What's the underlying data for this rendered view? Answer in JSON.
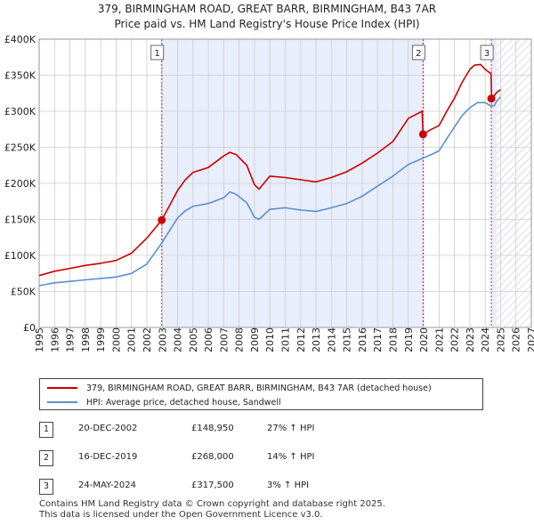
{
  "title_line1": "379, BIRMINGHAM ROAD, GREAT BARR, BIRMINGHAM, B43 7AR",
  "title_line2": "Price paid vs. HM Land Registry's House Price Index (HPI)",
  "chart_data": {
    "type": "line",
    "xlim": [
      1995,
      2027
    ],
    "ylim": [
      0,
      400000
    ],
    "x_ticks": [
      "1995",
      "1996",
      "1997",
      "1998",
      "1999",
      "2000",
      "2001",
      "2002",
      "2003",
      "2004",
      "2005",
      "2006",
      "2007",
      "2008",
      "2009",
      "2010",
      "2011",
      "2012",
      "2013",
      "2014",
      "2015",
      "2016",
      "2017",
      "2018",
      "2019",
      "2020",
      "2021",
      "2022",
      "2023",
      "2024",
      "2025",
      "2026",
      "2027"
    ],
    "y_ticks": [
      {
        "value": 0,
        "label": "£0"
      },
      {
        "value": 50000,
        "label": "£50K"
      },
      {
        "value": 100000,
        "label": "£100K"
      },
      {
        "value": 150000,
        "label": "£150K"
      },
      {
        "value": 200000,
        "label": "£200K"
      },
      {
        "value": 250000,
        "label": "£250K"
      },
      {
        "value": 300000,
        "label": "£300K"
      },
      {
        "value": 350000,
        "label": "£350K"
      },
      {
        "value": 400000,
        "label": "£400K"
      }
    ],
    "shaded_ranges": [
      [
        2002.97,
        2019.96
      ],
      [
        2024.4,
        2024.75
      ]
    ],
    "forecast_start": 2024.75,
    "series": [
      {
        "name": "379, BIRMINGHAM ROAD, GREAT BARR, BIRMINGHAM, B43 7AR (detached house)",
        "color": "#cc0000",
        "x": [
          1995.0,
          1996.0,
          1997.0,
          1998.0,
          1999.0,
          2000.0,
          2001.0,
          2002.0,
          2002.97,
          2003.5,
          2004.0,
          2004.5,
          2005.0,
          2006.0,
          2007.0,
          2007.4,
          2007.8,
          2008.5,
          2009.0,
          2009.3,
          2010.0,
          2011.0,
          2012.0,
          2013.0,
          2014.0,
          2015.0,
          2016.0,
          2017.0,
          2018.0,
          2019.0,
          2019.9,
          2019.96,
          2020.5,
          2021.0,
          2021.5,
          2022.0,
          2022.5,
          2023.0,
          2023.3,
          2023.7,
          2024.0,
          2024.38,
          2024.42,
          2024.6,
          2024.75,
          2025.0
        ],
        "y": [
          72000,
          78000,
          82000,
          86000,
          89000,
          93000,
          103000,
          124000,
          148950,
          170000,
          190000,
          205000,
          215000,
          222000,
          238000,
          243000,
          240000,
          225000,
          198000,
          192000,
          210000,
          208000,
          205000,
          202000,
          208000,
          216000,
          228000,
          242000,
          258000,
          290000,
          300000,
          268000,
          275000,
          280000,
          300000,
          318000,
          340000,
          358000,
          364000,
          365000,
          358000,
          352000,
          317500,
          322000,
          326000,
          330000
        ]
      },
      {
        "name": "HPI: Average price, detached house, Sandwell",
        "color": "#5b8fd0",
        "x": [
          1995.0,
          1996.0,
          1997.0,
          1998.0,
          1999.0,
          2000.0,
          2001.0,
          2002.0,
          2002.97,
          2003.5,
          2004.0,
          2004.5,
          2005.0,
          2006.0,
          2007.0,
          2007.4,
          2007.8,
          2008.5,
          2009.0,
          2009.3,
          2010.0,
          2011.0,
          2012.0,
          2013.0,
          2014.0,
          2015.0,
          2016.0,
          2017.0,
          2018.0,
          2019.0,
          2019.96,
          2020.5,
          2021.0,
          2021.5,
          2022.0,
          2022.5,
          2023.0,
          2023.5,
          2024.0,
          2024.38,
          2024.6,
          2024.75,
          2025.0
        ],
        "y": [
          58000,
          62000,
          64000,
          66000,
          68000,
          70000,
          75000,
          88000,
          117000,
          135000,
          152000,
          162000,
          168000,
          172000,
          180000,
          188000,
          185000,
          173000,
          153000,
          150000,
          164000,
          166000,
          163000,
          161000,
          166000,
          172000,
          182000,
          196000,
          210000,
          226000,
          235000,
          240000,
          245000,
          262000,
          278000,
          294000,
          305000,
          312000,
          312000,
          307000,
          308000,
          314000,
          320000
        ]
      }
    ],
    "sales": [
      {
        "num": "1",
        "x": 2002.97,
        "y": 148950
      },
      {
        "num": "2",
        "x": 2019.96,
        "y": 268000
      },
      {
        "num": "3",
        "x": 2024.4,
        "y": 317500
      }
    ]
  },
  "legend": {
    "property_label": "379, BIRMINGHAM ROAD, GREAT BARR, BIRMINGHAM, B43 7AR (detached house)",
    "hpi_label": "HPI: Average price, detached house, Sandwell"
  },
  "transactions": [
    {
      "num": "1",
      "date": "20-DEC-2002",
      "price": "£148,950",
      "hpi": "27% ↑ HPI"
    },
    {
      "num": "2",
      "date": "16-DEC-2019",
      "price": "£268,000",
      "hpi": "14% ↑ HPI"
    },
    {
      "num": "3",
      "date": "24-MAY-2024",
      "price": "£317,500",
      "hpi": "3% ↑ HPI"
    }
  ],
  "footer": {
    "line1": "Contains HM Land Registry data © Crown copyright and database right 2025.",
    "line2": "This data is licensed under the Open Government Licence v3.0."
  },
  "colors": {
    "property": "#cc0000",
    "hpi": "#5b8fd0",
    "shade": "#e8eefb",
    "grid": "#cccccc"
  }
}
